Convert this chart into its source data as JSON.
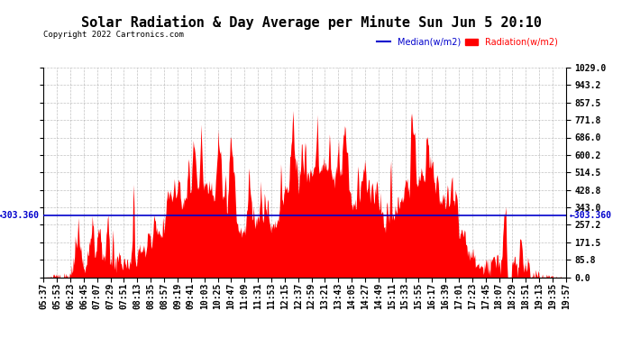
{
  "title": "Solar Radiation & Day Average per Minute Sun Jun 5 20:10",
  "copyright": "Copyright 2022 Cartronics.com",
  "legend_median": "Median(w/m2)",
  "legend_radiation": "Radiation(w/m2)",
  "median_value": 303.36,
  "y_max": 1029.0,
  "y_min": 0.0,
  "y_ticks": [
    0.0,
    85.8,
    171.5,
    257.2,
    343.0,
    428.8,
    514.5,
    600.2,
    686.0,
    771.8,
    857.5,
    943.2,
    1029.0
  ],
  "radiation_color": "#ff0000",
  "median_color": "#0000cc",
  "background_color": "#ffffff",
  "grid_color": "#999999",
  "x_labels": [
    "05:37",
    "05:53",
    "06:23",
    "06:45",
    "07:07",
    "07:29",
    "07:51",
    "08:13",
    "08:35",
    "08:57",
    "09:19",
    "09:41",
    "10:03",
    "10:25",
    "10:47",
    "11:09",
    "11:31",
    "11:53",
    "12:15",
    "12:37",
    "12:59",
    "13:21",
    "13:43",
    "14:05",
    "14:27",
    "14:49",
    "15:11",
    "15:33",
    "15:55",
    "16:17",
    "16:39",
    "17:01",
    "17:23",
    "17:45",
    "18:07",
    "18:29",
    "18:51",
    "19:13",
    "19:35",
    "19:57"
  ],
  "title_fontsize": 11,
  "tick_fontsize": 7
}
